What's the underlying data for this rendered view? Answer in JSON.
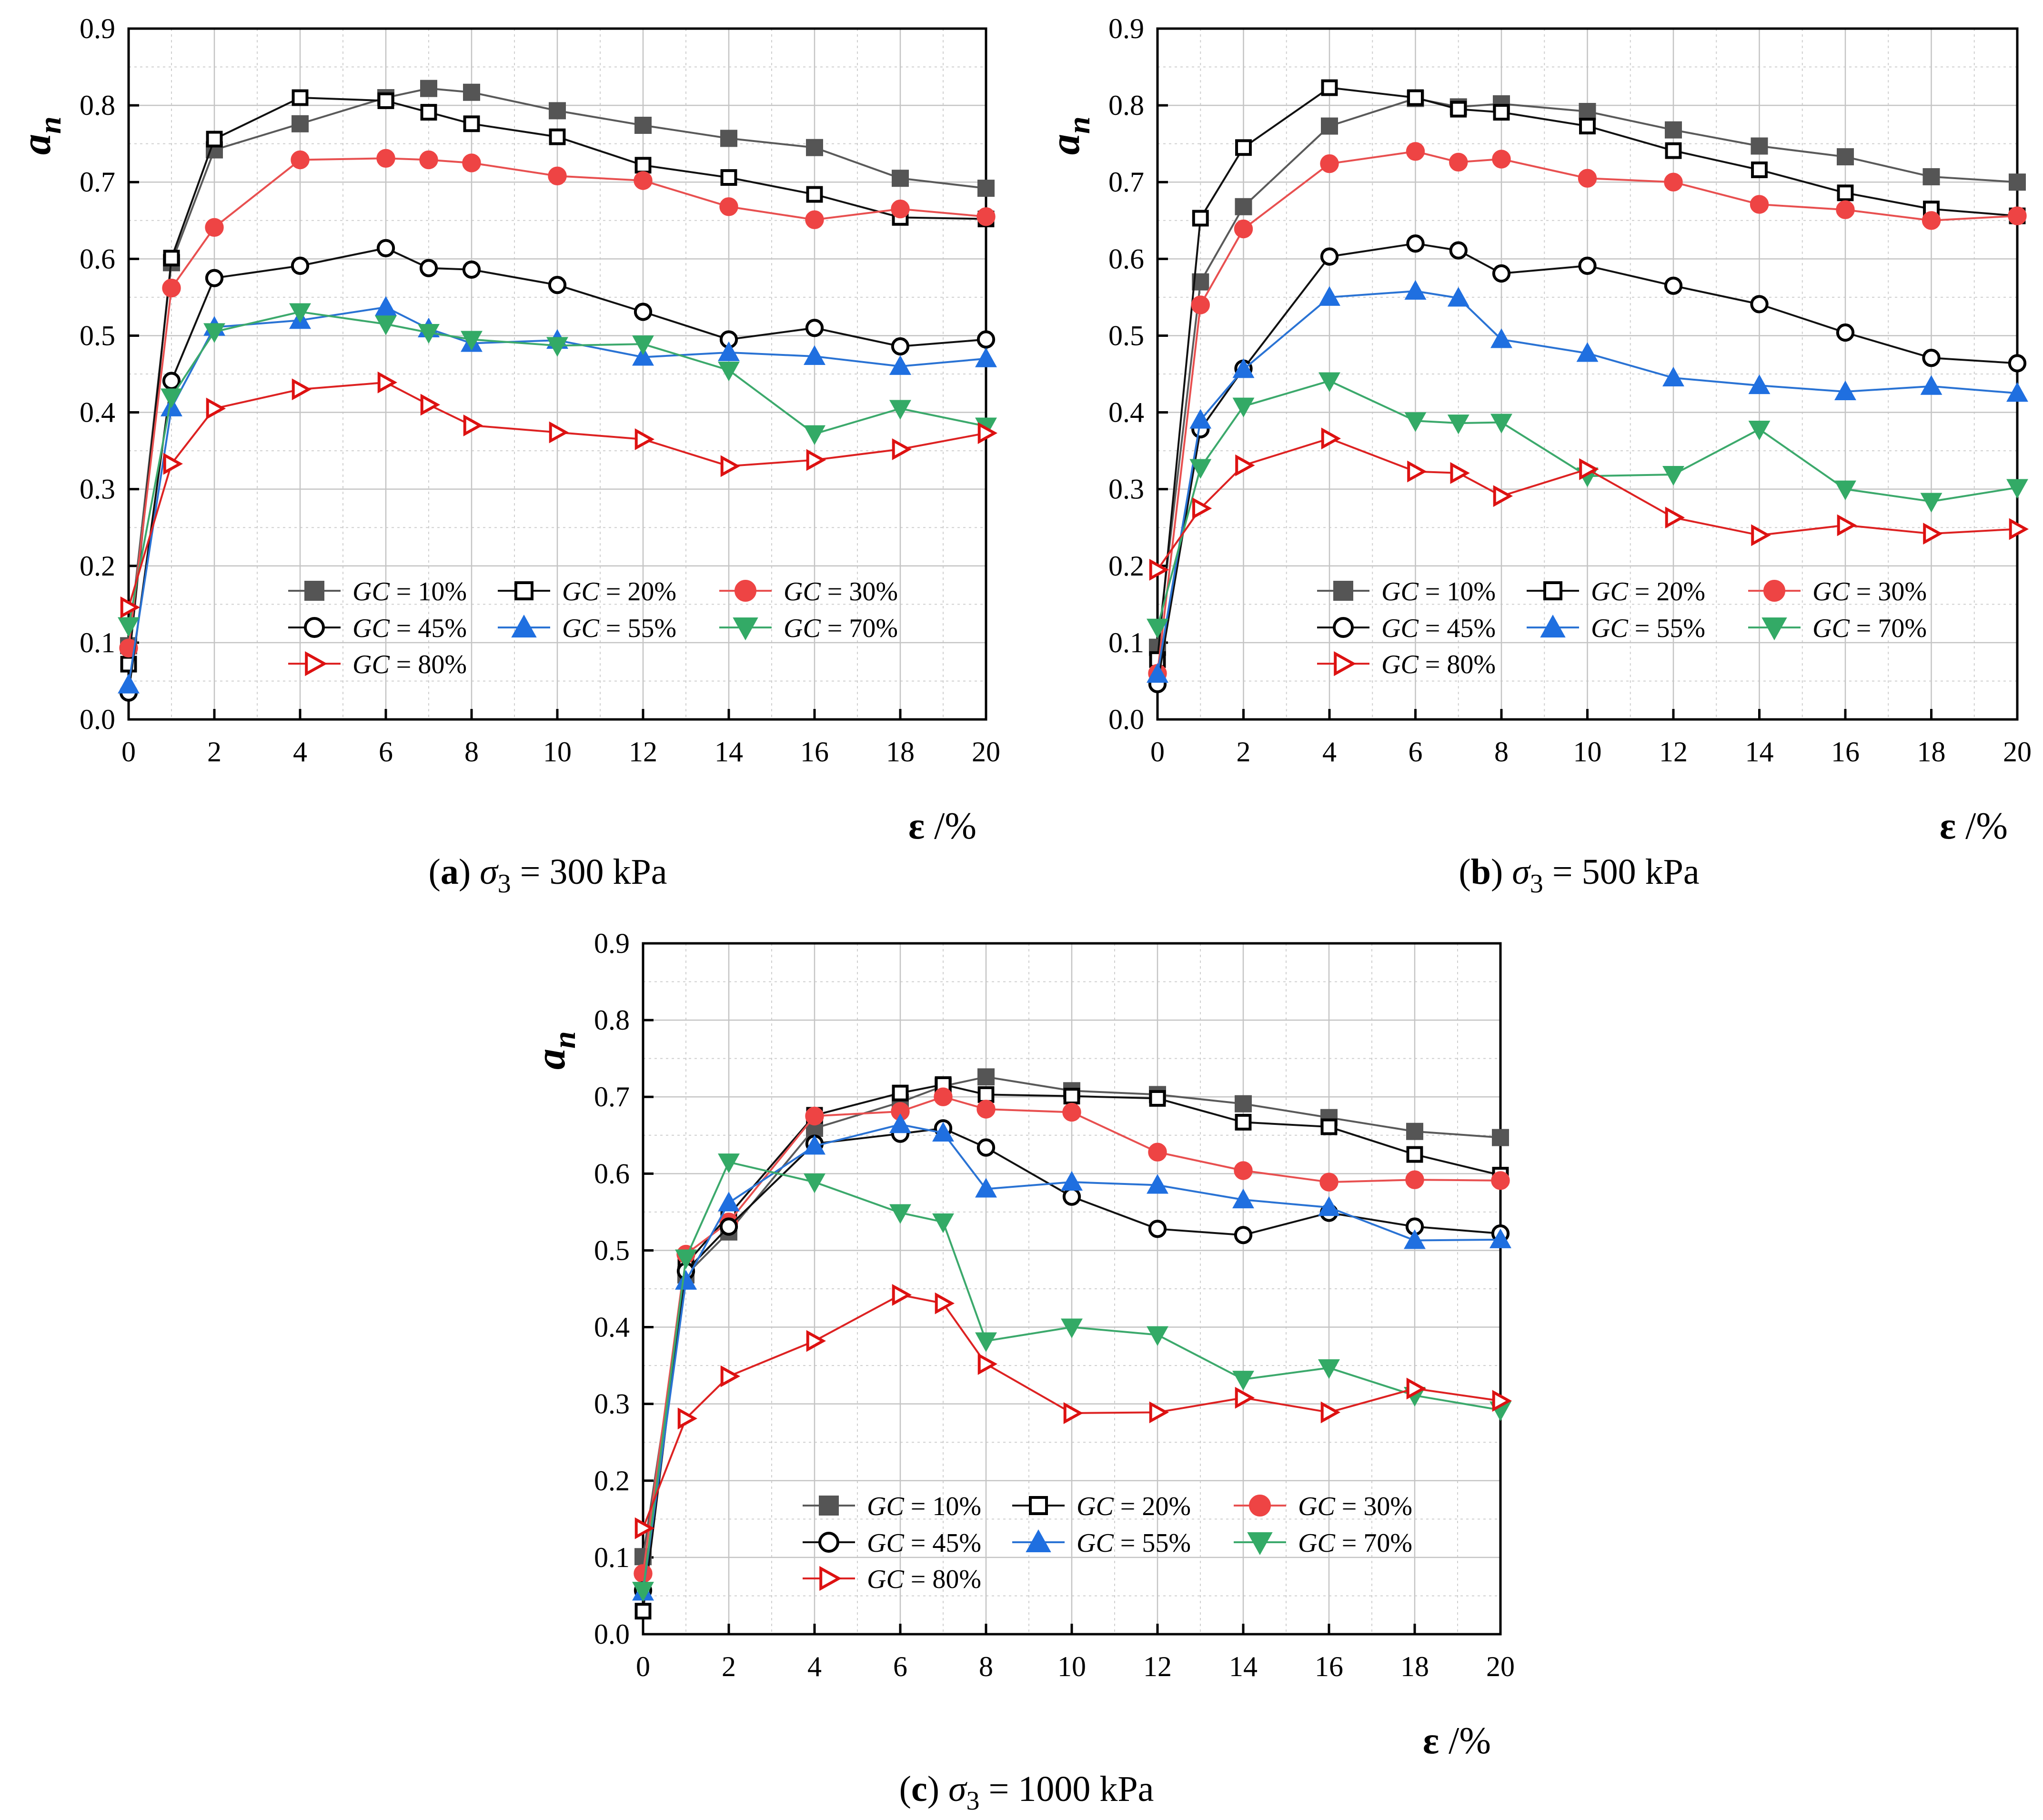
{
  "x_axis": {
    "symbol": "ε",
    "unit": " /%"
  },
  "y_axis": {
    "symbol": "a",
    "subscript": "n"
  },
  "series_style": [
    {
      "name": "GC = 10%",
      "line_color": "#5a5a5a",
      "marker_color": "#555555",
      "marker": "square-filled"
    },
    {
      "name": "GC = 20%",
      "line_color": "#111111",
      "marker_color": "#000000",
      "marker": "square-open"
    },
    {
      "name": "GC = 30%",
      "line_color": "#e85050",
      "marker_color": "#ee4444",
      "marker": "circle-filled"
    },
    {
      "name": "GC = 45%",
      "line_color": "#111111",
      "marker_color": "#000000",
      "marker": "circle-open"
    },
    {
      "name": "GC = 55%",
      "line_color": "#2a73d4",
      "marker_color": "#1f6fe0",
      "marker": "triangle-up-filled"
    },
    {
      "name": "GC = 70%",
      "line_color": "#3ca96c",
      "marker_color": "#33aa66",
      "marker": "triangle-down-filled"
    },
    {
      "name": "GC = 80%",
      "line_color": "#dd2222",
      "marker_color": "#dd1111",
      "marker": "triangle-right-open"
    }
  ],
  "chart_data": [
    {
      "type": "line",
      "panel": "a",
      "caption_label": "(a)",
      "caption_symbol": "σ",
      "caption_subscript": "3",
      "caption_value": " = 300 kPa",
      "xlim": [
        0,
        20
      ],
      "ylim": [
        0,
        0.9
      ],
      "xticks": [
        0,
        2,
        4,
        6,
        8,
        10,
        12,
        14,
        16,
        18,
        20
      ],
      "yticks": [
        0.0,
        0.1,
        0.2,
        0.3,
        0.4,
        0.5,
        0.6,
        0.7,
        0.8,
        0.9
      ],
      "grid": true,
      "legend_position": "bottom-right",
      "series": [
        {
          "name": "GC = 10%",
          "x": [
            0,
            1,
            2,
            4,
            6,
            7,
            8,
            10,
            12,
            14,
            16,
            18,
            20
          ],
          "y": [
            0.096,
            0.595,
            0.742,
            0.776,
            0.81,
            0.822,
            0.817,
            0.793,
            0.774,
            0.757,
            0.745,
            0.705,
            0.692
          ]
        },
        {
          "name": "GC = 20%",
          "x": [
            0,
            1,
            2,
            4,
            6,
            7,
            8,
            10,
            12,
            14,
            16,
            18,
            20
          ],
          "y": [
            0.072,
            0.601,
            0.756,
            0.81,
            0.806,
            0.791,
            0.776,
            0.759,
            0.722,
            0.706,
            0.684,
            0.654,
            0.652
          ]
        },
        {
          "name": "GC = 30%",
          "x": [
            0,
            1,
            2,
            4,
            6,
            7,
            8,
            10,
            12,
            14,
            16,
            18,
            20
          ],
          "y": [
            0.093,
            0.562,
            0.641,
            0.729,
            0.731,
            0.729,
            0.725,
            0.708,
            0.702,
            0.668,
            0.651,
            0.665,
            0.655
          ]
        },
        {
          "name": "GC = 45%",
          "x": [
            0,
            1,
            2,
            4,
            6,
            7,
            8,
            10,
            12,
            14,
            16,
            18,
            20
          ],
          "y": [
            0.035,
            0.441,
            0.575,
            0.591,
            0.614,
            0.588,
            0.586,
            0.566,
            0.531,
            0.495,
            0.51,
            0.486,
            0.495
          ]
        },
        {
          "name": "GC = 55%",
          "x": [
            0,
            1,
            2,
            4,
            6,
            7,
            8,
            10,
            12,
            14,
            16,
            18,
            20
          ],
          "y": [
            0.045,
            0.406,
            0.511,
            0.52,
            0.537,
            0.509,
            0.49,
            0.494,
            0.472,
            0.478,
            0.473,
            0.46,
            0.47
          ]
        },
        {
          "name": "GC = 70%",
          "x": [
            0,
            1,
            2,
            4,
            6,
            7,
            8,
            10,
            12,
            14,
            16,
            18,
            20
          ],
          "y": [
            0.122,
            0.42,
            0.505,
            0.531,
            0.515,
            0.504,
            0.495,
            0.487,
            0.489,
            0.455,
            0.372,
            0.405,
            0.382
          ]
        },
        {
          "name": "GC = 80%",
          "x": [
            0,
            1,
            2,
            4,
            6,
            7,
            8,
            10,
            12,
            14,
            16,
            18,
            20
          ],
          "y": [
            0.146,
            0.333,
            0.405,
            0.43,
            0.439,
            0.41,
            0.383,
            0.374,
            0.365,
            0.33,
            0.338,
            0.352,
            0.373
          ]
        }
      ]
    },
    {
      "type": "line",
      "panel": "b",
      "caption_label": "(b)",
      "caption_symbol": "σ",
      "caption_subscript": "3",
      "caption_value": " = 500 kPa",
      "xlim": [
        0,
        20
      ],
      "ylim": [
        0,
        0.9
      ],
      "xticks": [
        0,
        2,
        4,
        6,
        8,
        10,
        12,
        14,
        16,
        18,
        20
      ],
      "yticks": [
        0.0,
        0.1,
        0.2,
        0.3,
        0.4,
        0.5,
        0.6,
        0.7,
        0.8,
        0.9
      ],
      "grid": true,
      "legend_position": "bottom-right",
      "series": [
        {
          "name": "GC = 10%",
          "x": [
            0,
            1,
            2,
            4,
            6,
            7,
            8,
            10,
            12,
            14,
            16,
            18,
            20
          ],
          "y": [
            0.094,
            0.57,
            0.668,
            0.773,
            0.809,
            0.798,
            0.802,
            0.792,
            0.768,
            0.747,
            0.733,
            0.707,
            0.7
          ]
        },
        {
          "name": "GC = 20%",
          "x": [
            0,
            1,
            2,
            4,
            6,
            7,
            8,
            10,
            12,
            14,
            16,
            18,
            20
          ],
          "y": [
            0.078,
            0.653,
            0.745,
            0.823,
            0.81,
            0.795,
            0.791,
            0.773,
            0.741,
            0.716,
            0.686,
            0.665,
            0.656
          ]
        },
        {
          "name": "GC = 30%",
          "x": [
            0,
            1,
            2,
            4,
            6,
            7,
            8,
            10,
            12,
            14,
            16,
            18,
            20
          ],
          "y": [
            0.06,
            0.54,
            0.639,
            0.724,
            0.74,
            0.726,
            0.73,
            0.705,
            0.7,
            0.671,
            0.664,
            0.65,
            0.656
          ]
        },
        {
          "name": "GC = 45%",
          "x": [
            0,
            1,
            2,
            4,
            6,
            7,
            8,
            10,
            12,
            14,
            16,
            18,
            20
          ],
          "y": [
            0.046,
            0.378,
            0.457,
            0.603,
            0.62,
            0.611,
            0.581,
            0.591,
            0.565,
            0.541,
            0.504,
            0.471,
            0.464
          ]
        },
        {
          "name": "GC = 55%",
          "x": [
            0,
            1,
            2,
            4,
            6,
            7,
            8,
            10,
            12,
            14,
            16,
            18,
            20
          ],
          "y": [
            0.059,
            0.39,
            0.456,
            0.55,
            0.558,
            0.549,
            0.495,
            0.477,
            0.445,
            0.435,
            0.427,
            0.434,
            0.425
          ]
        },
        {
          "name": "GC = 70%",
          "x": [
            0,
            1,
            2,
            4,
            6,
            7,
            8,
            10,
            12,
            14,
            16,
            18,
            20
          ],
          "y": [
            0.12,
            0.328,
            0.408,
            0.441,
            0.389,
            0.386,
            0.387,
            0.317,
            0.319,
            0.378,
            0.3,
            0.284,
            0.302
          ]
        },
        {
          "name": "GC = 80%",
          "x": [
            0,
            1,
            2,
            4,
            6,
            7,
            8,
            10,
            12,
            14,
            16,
            18,
            20
          ],
          "y": [
            0.195,
            0.275,
            0.331,
            0.366,
            0.323,
            0.321,
            0.291,
            0.326,
            0.263,
            0.24,
            0.253,
            0.242,
            0.248
          ]
        }
      ]
    },
    {
      "type": "line",
      "panel": "c",
      "caption_label": "(c)",
      "caption_symbol": "σ",
      "caption_subscript": "3",
      "caption_value": " = 1000 kPa",
      "xlim": [
        0,
        20
      ],
      "ylim": [
        0,
        0.9
      ],
      "xticks": [
        0,
        2,
        4,
        6,
        8,
        10,
        12,
        14,
        16,
        18,
        20
      ],
      "yticks": [
        0.0,
        0.1,
        0.2,
        0.3,
        0.4,
        0.5,
        0.6,
        0.7,
        0.8,
        0.9
      ],
      "grid": true,
      "legend_position": "bottom-right",
      "series": [
        {
          "name": "GC = 10%",
          "x": [
            0,
            1,
            2,
            4,
            6,
            7,
            8,
            10,
            12,
            14,
            16,
            18,
            20
          ],
          "y": [
            0.101,
            0.468,
            0.524,
            0.659,
            0.693,
            0.714,
            0.726,
            0.708,
            0.703,
            0.691,
            0.673,
            0.655,
            0.647
          ]
        },
        {
          "name": "GC = 20%",
          "x": [
            0,
            1,
            2,
            4,
            6,
            7,
            8,
            10,
            12,
            14,
            16,
            18,
            20
          ],
          "y": [
            0.03,
            0.482,
            0.546,
            0.676,
            0.705,
            0.716,
            0.703,
            0.701,
            0.698,
            0.667,
            0.661,
            0.625,
            0.598
          ]
        },
        {
          "name": "GC = 30%",
          "x": [
            0,
            1,
            2,
            4,
            6,
            7,
            8,
            10,
            12,
            14,
            16,
            18,
            20
          ],
          "y": [
            0.079,
            0.495,
            0.537,
            0.675,
            0.681,
            0.7,
            0.684,
            0.68,
            0.628,
            0.604,
            0.589,
            0.592,
            0.591
          ]
        },
        {
          "name": "GC = 45%",
          "x": [
            0,
            1,
            2,
            4,
            6,
            7,
            8,
            10,
            12,
            14,
            16,
            18,
            20
          ],
          "y": [
            0.057,
            0.473,
            0.531,
            0.639,
            0.652,
            0.659,
            0.634,
            0.57,
            0.528,
            0.52,
            0.549,
            0.531,
            0.522
          ]
        },
        {
          "name": "GC = 55%",
          "x": [
            0,
            1,
            2,
            4,
            6,
            7,
            8,
            10,
            12,
            14,
            16,
            18,
            20
          ],
          "y": [
            0.055,
            0.46,
            0.562,
            0.636,
            0.664,
            0.653,
            0.58,
            0.589,
            0.585,
            0.566,
            0.556,
            0.513,
            0.514
          ]
        },
        {
          "name": "GC = 70%",
          "x": [
            0,
            1,
            2,
            4,
            6,
            7,
            8,
            10,
            12,
            14,
            16,
            18,
            20
          ],
          "y": [
            0.057,
            0.49,
            0.615,
            0.589,
            0.549,
            0.537,
            0.382,
            0.4,
            0.39,
            0.332,
            0.347,
            0.311,
            0.292
          ]
        },
        {
          "name": "GC = 80%",
          "x": [
            0,
            1,
            2,
            4,
            6,
            7,
            8,
            10,
            12,
            14,
            16,
            18,
            20
          ],
          "y": [
            0.138,
            0.281,
            0.336,
            0.382,
            0.442,
            0.431,
            0.352,
            0.288,
            0.289,
            0.308,
            0.289,
            0.32,
            0.304
          ]
        }
      ]
    }
  ]
}
